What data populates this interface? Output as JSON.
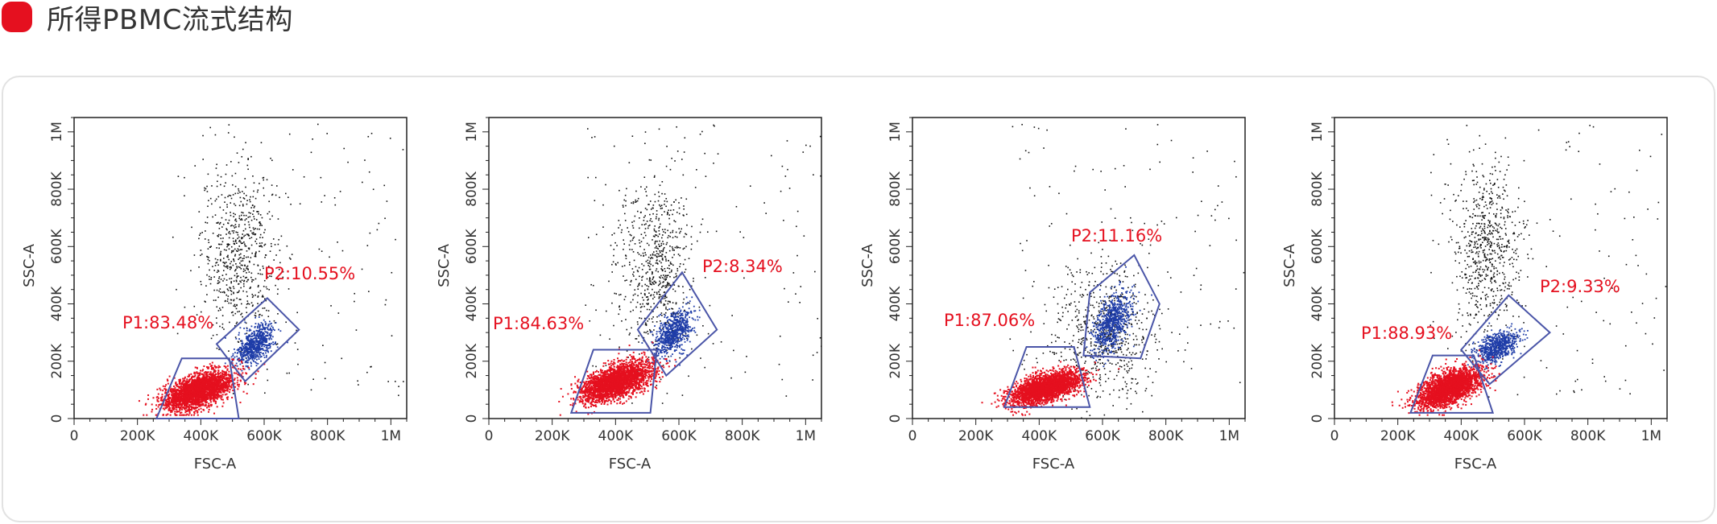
{
  "heading": {
    "title": "所得PBMC流式结构",
    "accent_color": "#e5101f"
  },
  "colors": {
    "p1": "#e5101f",
    "p2": "#1f3da8",
    "other": "#111111",
    "gate_line": "#4a55a8",
    "label": "#e5101f"
  },
  "chart_data": [
    {
      "type": "scatter",
      "xlabel": "FSC-A",
      "ylabel": "SSC-A",
      "xlim": [
        0,
        1050000
      ],
      "ylim": [
        0,
        1050000
      ],
      "x_ticks": [
        0,
        200000,
        400000,
        600000,
        800000,
        1000000
      ],
      "x_tick_labels": [
        "0",
        "200K",
        "400K",
        "600K",
        "800K",
        "1M"
      ],
      "y_ticks": [
        0,
        200000,
        400000,
        600000,
        800000,
        1000000
      ],
      "y_tick_labels": [
        "0",
        "200K",
        "400K",
        "600K",
        "800K",
        "1M"
      ],
      "gates": [
        {
          "name": "P1",
          "label": "P1:83.48%",
          "percent": 83.48,
          "polygon": [
            [
              260000,
              0
            ],
            [
              340000,
              210000
            ],
            [
              490000,
              210000
            ],
            [
              520000,
              0
            ]
          ]
        },
        {
          "name": "P2",
          "label": "P2:10.55%",
          "percent": 10.55,
          "polygon": [
            [
              450000,
              260000
            ],
            [
              610000,
              420000
            ],
            [
              710000,
              310000
            ],
            [
              540000,
              130000
            ]
          ]
        }
      ],
      "populations": {
        "p1_center": [
          390000,
          100000
        ],
        "p1_spread": [
          55000,
          35000
        ],
        "p2_center": [
          570000,
          260000
        ],
        "p2_spread": [
          30000,
          35000
        ],
        "cloud_center": [
          520000,
          580000
        ],
        "cloud_spread": [
          60000,
          150000
        ]
      }
    },
    {
      "type": "scatter",
      "xlabel": "FSC-A",
      "ylabel": "SSC-A",
      "xlim": [
        0,
        1050000
      ],
      "ylim": [
        0,
        1050000
      ],
      "x_ticks": [
        0,
        200000,
        400000,
        600000,
        800000,
        1000000
      ],
      "x_tick_labels": [
        "0",
        "200K",
        "400K",
        "600K",
        "800K",
        "1M"
      ],
      "y_ticks": [
        0,
        200000,
        400000,
        600000,
        800000,
        1000000
      ],
      "y_tick_labels": [
        "0",
        "200K",
        "400K",
        "600K",
        "800K",
        "1M"
      ],
      "gates": [
        {
          "name": "P1",
          "label": "P1:84.63%",
          "percent": 84.63,
          "polygon": [
            [
              260000,
              20000
            ],
            [
              330000,
              240000
            ],
            [
              530000,
              240000
            ],
            [
              510000,
              20000
            ]
          ]
        },
        {
          "name": "P2",
          "label": "P2:8.34%",
          "percent": 8.34,
          "polygon": [
            [
              470000,
              310000
            ],
            [
              610000,
              510000
            ],
            [
              720000,
              310000
            ],
            [
              560000,
              150000
            ]
          ]
        }
      ],
      "populations": {
        "p1_center": [
          400000,
          130000
        ],
        "p1_spread": [
          55000,
          35000
        ],
        "p2_center": [
          580000,
          300000
        ],
        "p2_spread": [
          30000,
          40000
        ],
        "cloud_center": [
          520000,
          530000
        ],
        "cloud_spread": [
          60000,
          150000
        ]
      }
    },
    {
      "type": "scatter",
      "xlabel": "FSC-A",
      "ylabel": "SSC-A",
      "xlim": [
        0,
        1050000
      ],
      "ylim": [
        0,
        1050000
      ],
      "x_ticks": [
        0,
        200000,
        400000,
        600000,
        800000,
        1000000
      ],
      "x_tick_labels": [
        "0",
        "200K",
        "400K",
        "600K",
        "800K",
        "1M"
      ],
      "y_ticks": [
        0,
        200000,
        400000,
        600000,
        800000,
        1000000
      ],
      "y_tick_labels": [
        "0",
        "200K",
        "400K",
        "600K",
        "800K",
        "1M"
      ],
      "gates": [
        {
          "name": "P1",
          "label": "P1:87.06%",
          "percent": 87.06,
          "polygon": [
            [
              290000,
              40000
            ],
            [
              360000,
              250000
            ],
            [
              510000,
              250000
            ],
            [
              560000,
              40000
            ]
          ]
        },
        {
          "name": "P2",
          "label": "P2:11.16%",
          "percent": 11.16,
          "polygon": [
            [
              540000,
              220000
            ],
            [
              560000,
              440000
            ],
            [
              700000,
              570000
            ],
            [
              780000,
              400000
            ],
            [
              720000,
              210000
            ]
          ]
        }
      ],
      "populations": {
        "p1_center": [
          420000,
          110000
        ],
        "p1_spread": [
          55000,
          30000
        ],
        "p2_center": [
          630000,
          340000
        ],
        "p2_spread": [
          30000,
          55000
        ],
        "cloud_center": [
          600000,
          300000
        ],
        "cloud_spread": [
          80000,
          120000
        ]
      }
    },
    {
      "type": "scatter",
      "xlabel": "FSC-A",
      "ylabel": "SSC-A",
      "xlim": [
        0,
        1050000
      ],
      "ylim": [
        0,
        1050000
      ],
      "x_ticks": [
        0,
        200000,
        400000,
        600000,
        800000,
        1000000
      ],
      "x_tick_labels": [
        "0",
        "200K",
        "400K",
        "600K",
        "800K",
        "1M"
      ],
      "y_ticks": [
        0,
        200000,
        400000,
        600000,
        800000,
        1000000
      ],
      "y_tick_labels": [
        "0",
        "200K",
        "400K",
        "600K",
        "800K",
        "1M"
      ],
      "gates": [
        {
          "name": "P1",
          "label": "P1:88.93%",
          "percent": 88.93,
          "polygon": [
            [
              240000,
              20000
            ],
            [
              310000,
              220000
            ],
            [
              440000,
              220000
            ],
            [
              500000,
              20000
            ]
          ]
        },
        {
          "name": "P2",
          "label": "P2:9.33%",
          "percent": 9.33,
          "polygon": [
            [
              400000,
              240000
            ],
            [
              550000,
              430000
            ],
            [
              680000,
              300000
            ],
            [
              490000,
              120000
            ]
          ]
        }
      ],
      "populations": {
        "p1_center": [
          360000,
          110000
        ],
        "p1_spread": [
          50000,
          35000
        ],
        "p2_center": [
          510000,
          250000
        ],
        "p2_spread": [
          35000,
          30000
        ],
        "cloud_center": [
          480000,
          580000
        ],
        "cloud_spread": [
          50000,
          150000
        ]
      }
    }
  ]
}
